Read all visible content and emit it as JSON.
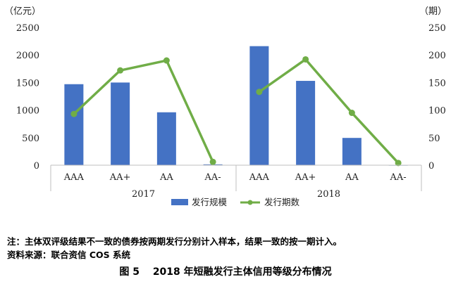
{
  "chart_data": {
    "type": "bar",
    "left_unit": "（亿元）",
    "right_unit": "（期）",
    "groups": [
      "2017",
      "2018"
    ],
    "categories": [
      "AAA",
      "AA+",
      "AA",
      "AA-",
      "AAA",
      "AA+",
      "AA",
      "AA-"
    ],
    "series": [
      {
        "name": "发行规模",
        "type": "bar",
        "axis": "left",
        "color": "#4472C4",
        "values": [
          1470,
          1500,
          960,
          15,
          2160,
          1530,
          495,
          5
        ]
      },
      {
        "name": "发行期数",
        "type": "line",
        "axis": "right",
        "color": "#70AD47",
        "values": [
          93,
          172,
          190,
          6,
          133,
          192,
          95,
          4
        ]
      }
    ],
    "left_axis": {
      "min": 0,
      "max": 2500,
      "ticks": [
        "0",
        "500",
        "1000",
        "1500",
        "2000",
        "2500"
      ]
    },
    "right_axis": {
      "min": 0,
      "max": 250,
      "ticks": [
        "0",
        "50",
        "100",
        "150",
        "200",
        "250"
      ]
    },
    "grid": false,
    "legend_position": "bottom"
  },
  "note": "注：主体双评级结果不一致的债券按两期发行分别计入样本，结果一致的按一期计入。",
  "source": "资料来源：联合资信 COS 系统",
  "caption": "图 5　 2018 年短融发行主体信用等级分布情况"
}
